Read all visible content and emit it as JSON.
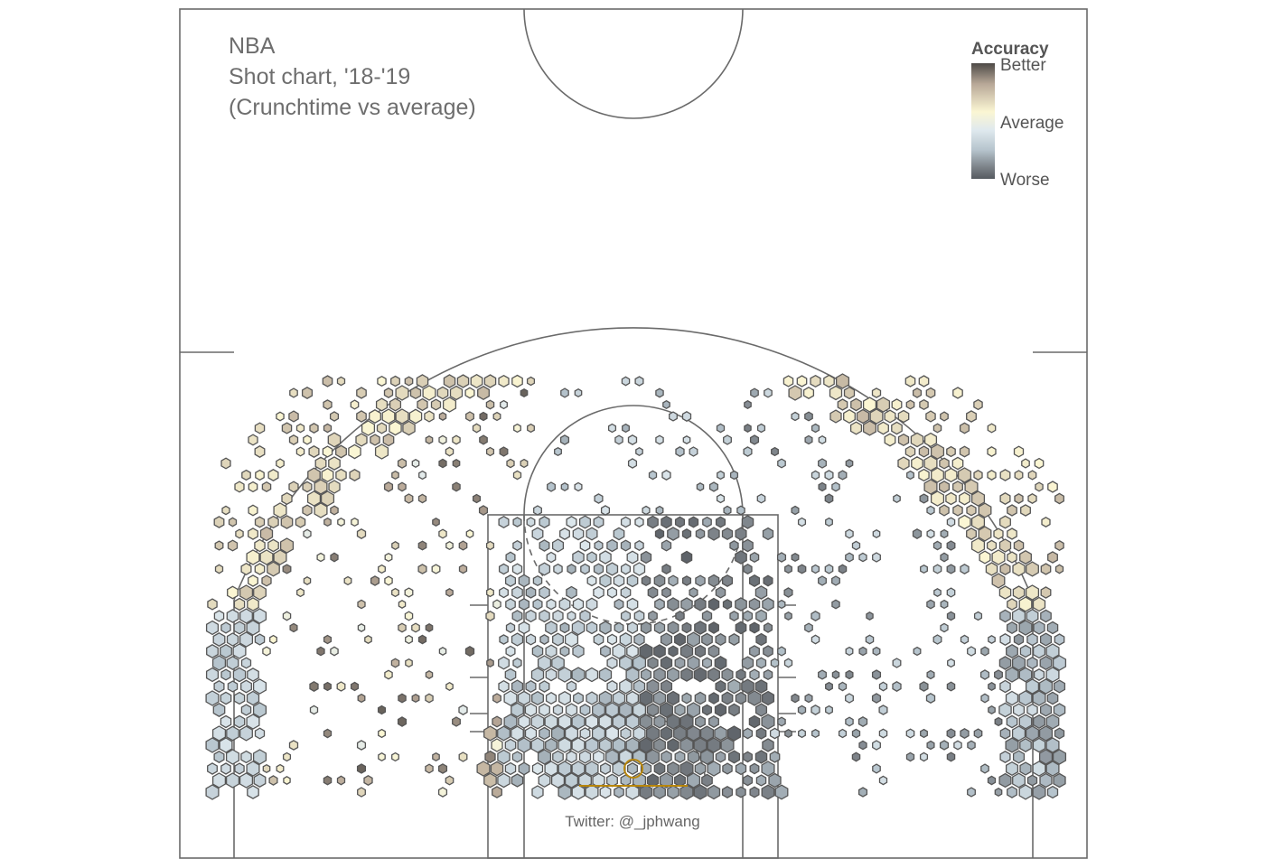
{
  "chart_data": {
    "type": "hexbin",
    "title_lines": [
      "NBA",
      "Shot chart, '18-'19",
      "(Crunchtime vs average)"
    ],
    "credit": "Twitter: @_jphwang",
    "legend": {
      "title": "Accuracy",
      "labels": [
        "Better",
        "Average",
        "Worse"
      ],
      "placement": "top-right",
      "colors": [
        "#4d4a47",
        "#b8a898",
        "#fbf6d3",
        "#dfe9ee",
        "#b6c4cd",
        "#7c8288",
        "#555a60"
      ]
    },
    "court": {
      "x_range": [
        -250,
        250
      ],
      "y_range": [
        -52.5,
        417.5
      ],
      "units": "tenths of feet, basket at origin",
      "line_color": "#6a6a6a"
    },
    "zones": [
      {
        "name": "above-break-3",
        "rel": 0.35,
        "spread": 0.18
      },
      {
        "name": "corner-3-left",
        "rel": -0.3,
        "spread": 0.15
      },
      {
        "name": "corner-3-right",
        "rel": -0.45,
        "spread": 0.25
      },
      {
        "name": "mid-range-left",
        "rel": 0.4,
        "spread": 0.5
      },
      {
        "name": "mid-range-center",
        "rel": -0.35,
        "spread": 0.2
      },
      {
        "name": "mid-range-right",
        "rel": -0.5,
        "spread": 0.3
      },
      {
        "name": "paint-left",
        "rel": -0.35,
        "spread": 0.2
      },
      {
        "name": "paint-right",
        "rel": -0.75,
        "spread": 0.2
      }
    ]
  }
}
